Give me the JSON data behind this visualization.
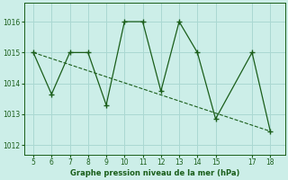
{
  "x": [
    5,
    6,
    7,
    8,
    9,
    10,
    11,
    12,
    13,
    14,
    15,
    17,
    18
  ],
  "y": [
    1015.0,
    1013.65,
    1015.0,
    1015.0,
    1013.3,
    1016.0,
    1016.0,
    1013.75,
    1016.0,
    1015.0,
    1012.85,
    1015.0,
    1012.45
  ],
  "trend_x": [
    5,
    18
  ],
  "trend_y": [
    1015.0,
    1012.45
  ],
  "line_color": "#1a5e1a",
  "bg_color": "#cceee8",
  "grid_color": "#aad8d2",
  "xlabel": "Graphe pression niveau de la mer (hPa)",
  "yticks": [
    1012,
    1013,
    1014,
    1015,
    1016
  ],
  "xticks": [
    5,
    6,
    7,
    8,
    9,
    10,
    11,
    12,
    13,
    14,
    15,
    17,
    18
  ],
  "xlim": [
    4.5,
    18.8
  ],
  "ylim": [
    1011.7,
    1016.6
  ]
}
